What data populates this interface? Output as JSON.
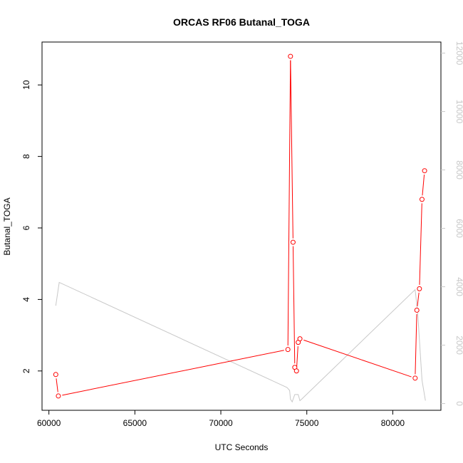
{
  "chart_data": {
    "type": "line",
    "title": "ORCAS RF06 Butanal_TOGA",
    "xlabel": "UTC Seconds",
    "ylabel": "Butanal_TOGA",
    "xlim": [
      59600,
      82800
    ],
    "ylim": [
      0.9,
      11.2
    ],
    "y2lim": [
      -230,
      12380
    ],
    "x_ticks": [
      60000,
      65000,
      70000,
      75000,
      80000
    ],
    "x_tick_labels": [
      "60000",
      "65000",
      "70000",
      "75000",
      "80000"
    ],
    "y_ticks": [
      2,
      4,
      6,
      8,
      10
    ],
    "y_tick_labels": [
      "2",
      "4",
      "6",
      "8",
      "10"
    ],
    "y2_ticks": [
      0,
      2000,
      4000,
      6000,
      8000,
      10000,
      12000
    ],
    "y2_tick_labels": [
      "0",
      "2000",
      "4000",
      "6000",
      "8000",
      "10000",
      "12000"
    ],
    "grid": false,
    "series": [
      {
        "axis": "left",
        "color": "#ff0000",
        "markers": true,
        "x": [
          60400,
          60550,
          73900,
          74050,
          74200,
          74300,
          74400,
          74500,
          74600,
          81300,
          81400,
          81550,
          81700,
          81850
        ],
        "y": [
          1.9,
          1.3,
          2.6,
          10.8,
          5.6,
          2.1,
          2.0,
          2.8,
          2.9,
          1.8,
          3.7,
          4.3,
          6.8,
          7.6
        ]
      },
      {
        "axis": "right",
        "color": "#c8c8c8",
        "markers": false,
        "x": [
          60400,
          60600,
          73850,
          74000,
          74050,
          74150,
          74300,
          74500,
          74600,
          74700,
          81300,
          81450,
          81700,
          81900
        ],
        "y": [
          3350,
          4150,
          550,
          450,
          150,
          60,
          310,
          310,
          100,
          150,
          3900,
          3100,
          800,
          100
        ]
      }
    ]
  },
  "colors": {
    "axis": "#000000",
    "right_axis": "#c8c8c8"
  }
}
